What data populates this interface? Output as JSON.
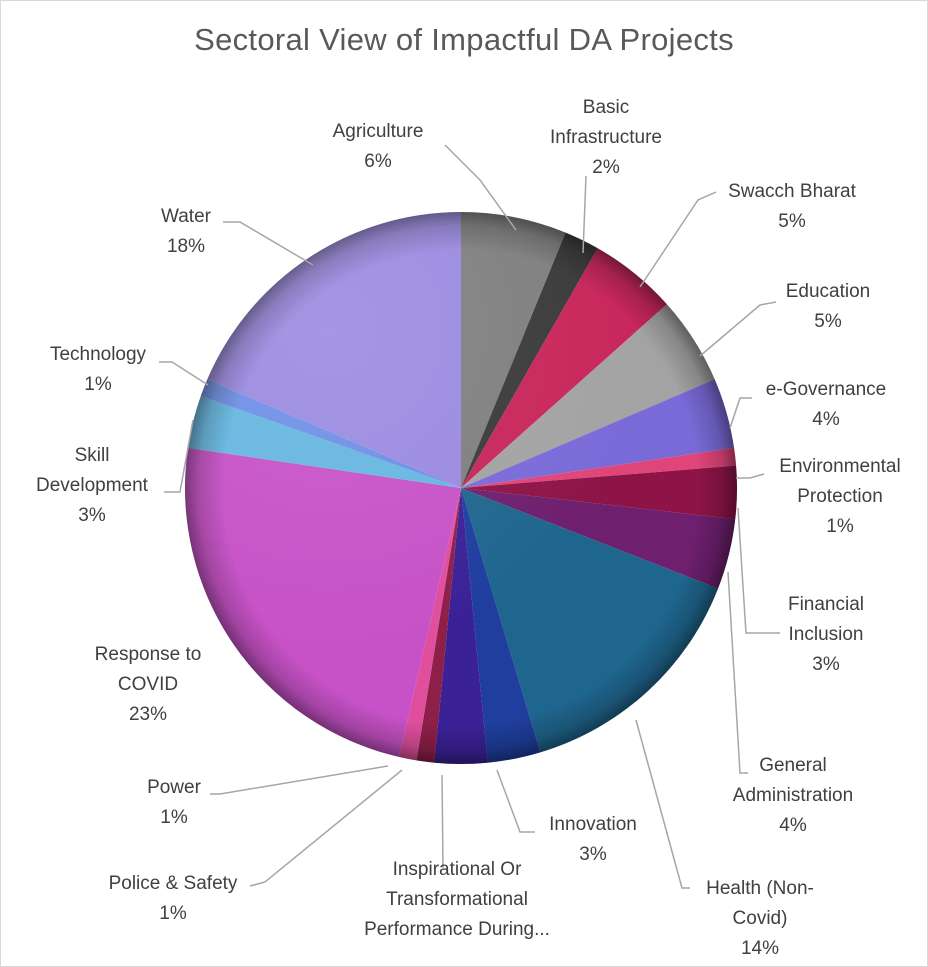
{
  "chart_data": {
    "type": "pie",
    "title": "Sectoral View of Impactful DA Projects",
    "slices": [
      {
        "label": "Agriculture",
        "display_lines": [
          "Agriculture"
        ],
        "value": 6,
        "pct_label": "6%",
        "color": "#7f7f7f"
      },
      {
        "label": "Basic Infrastructure",
        "display_lines": [
          "Basic",
          "Infrastructure"
        ],
        "value": 2,
        "pct_label": "2%",
        "color": "#3a3a3a"
      },
      {
        "label": "Swacch Bharat",
        "display_lines": [
          "Swacch Bharat"
        ],
        "value": 5,
        "pct_label": "5%",
        "color": "#c8265b"
      },
      {
        "label": "Education",
        "display_lines": [
          "Education"
        ],
        "value": 5,
        "pct_label": "5%",
        "color": "#a3a3a3"
      },
      {
        "label": "e-Governance",
        "display_lines": [
          "e-Governance"
        ],
        "value": 4,
        "pct_label": "4%",
        "color": "#7a6ad8"
      },
      {
        "label": "Environmental Protection",
        "display_lines": [
          "Environmental",
          "Protection"
        ],
        "value": 1,
        "pct_label": "1%",
        "color": "#e0457a"
      },
      {
        "label": "Financial Inclusion",
        "display_lines": [
          "Financial",
          "Inclusion"
        ],
        "value": 3,
        "pct_label": "3%",
        "color": "#8e1448"
      },
      {
        "label": "General Administration",
        "display_lines": [
          "General",
          "Administration"
        ],
        "value": 4,
        "pct_label": "4%",
        "color": "#6e1f6e"
      },
      {
        "label": "Health (Non-Covid)",
        "display_lines": [
          "Health (Non-",
          "Covid)"
        ],
        "value": 14,
        "pct_label": "14%",
        "color": "#1f668e"
      },
      {
        "label": "Innovation",
        "display_lines": [
          "Innovation"
        ],
        "value": 3,
        "pct_label": "3%",
        "color": "#1f3e9e"
      },
      {
        "label": "Inspirational Or Transformational Performance During...",
        "display_lines": [
          "Inspirational Or",
          "Transformational",
          "Performance During..."
        ],
        "value": 3,
        "pct_label": "",
        "color": "#3a2196"
      },
      {
        "label": "Police & Safety",
        "display_lines": [
          "Police & Safety"
        ],
        "value": 1,
        "pct_label": "1%",
        "color": "#8e1f48"
      },
      {
        "label": "Power",
        "display_lines": [
          "Power"
        ],
        "value": 1,
        "pct_label": "1%",
        "color": "#e04f9e"
      },
      {
        "label": "Response to COVID",
        "display_lines": [
          "Response to",
          "COVID"
        ],
        "value": 23,
        "pct_label": "23%",
        "color": "#c752c7"
      },
      {
        "label": "Skill Development",
        "display_lines": [
          "Skill",
          "Development"
        ],
        "value": 3,
        "pct_label": "3%",
        "color": "#66b6e0"
      },
      {
        "label": "Technology",
        "display_lines": [
          "Technology"
        ],
        "value": 1,
        "pct_label": "1%",
        "color": "#6f8fe6"
      },
      {
        "label": "Water",
        "display_lines": [
          "Water"
        ],
        "value": 18,
        "pct_label": "18%",
        "color": "#9b8ae0"
      }
    ]
  }
}
